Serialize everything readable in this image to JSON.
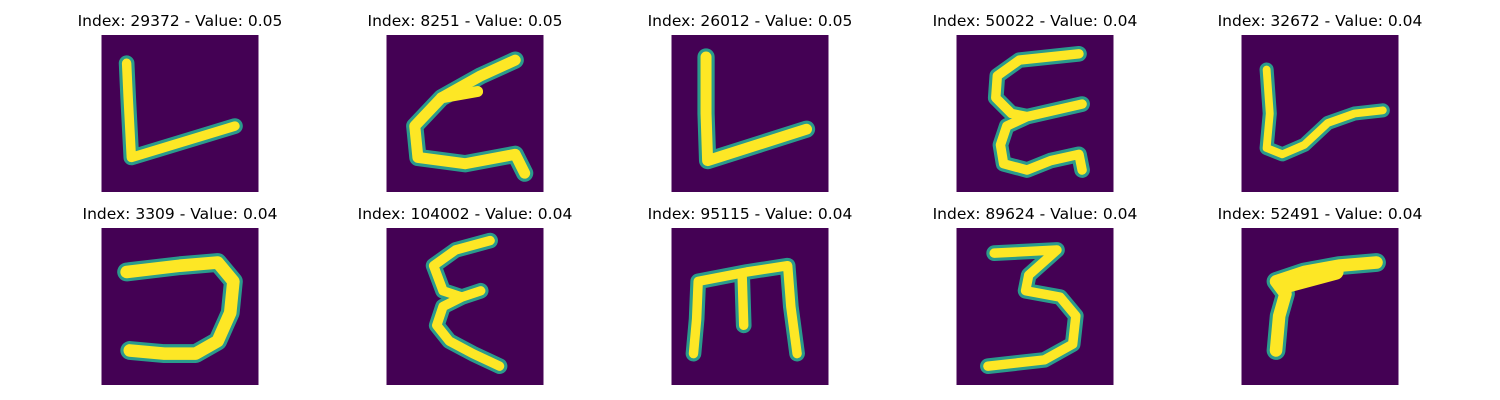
{
  "colors": {
    "background": "#440154",
    "stroke_mid": "#2a9b8c",
    "stroke_core": "#fde725",
    "title": "#000000"
  },
  "panels": [
    {
      "title": "Index: 29372 - Value: 0.05",
      "glyph": "L"
    },
    {
      "title": "Index: 8251 - Value: 0.05",
      "glyph": "C-like"
    },
    {
      "title": "Index: 26012 - Value: 0.05",
      "glyph": "L"
    },
    {
      "title": "Index: 50022 - Value: 0.04",
      "glyph": "epsilon"
    },
    {
      "title": "Index: 32672 - Value: 0.04",
      "glyph": "L"
    },
    {
      "title": "Index: 3309 - Value: 0.04",
      "glyph": "reversed C"
    },
    {
      "title": "Index: 104002 - Value: 0.04",
      "glyph": "epsilon"
    },
    {
      "title": "Index: 95115 - Value: 0.04",
      "glyph": "m"
    },
    {
      "title": "Index: 89624 - Value: 0.04",
      "glyph": "3"
    },
    {
      "title": "Index: 52491 - Value: 0.04",
      "glyph": "r"
    }
  ]
}
